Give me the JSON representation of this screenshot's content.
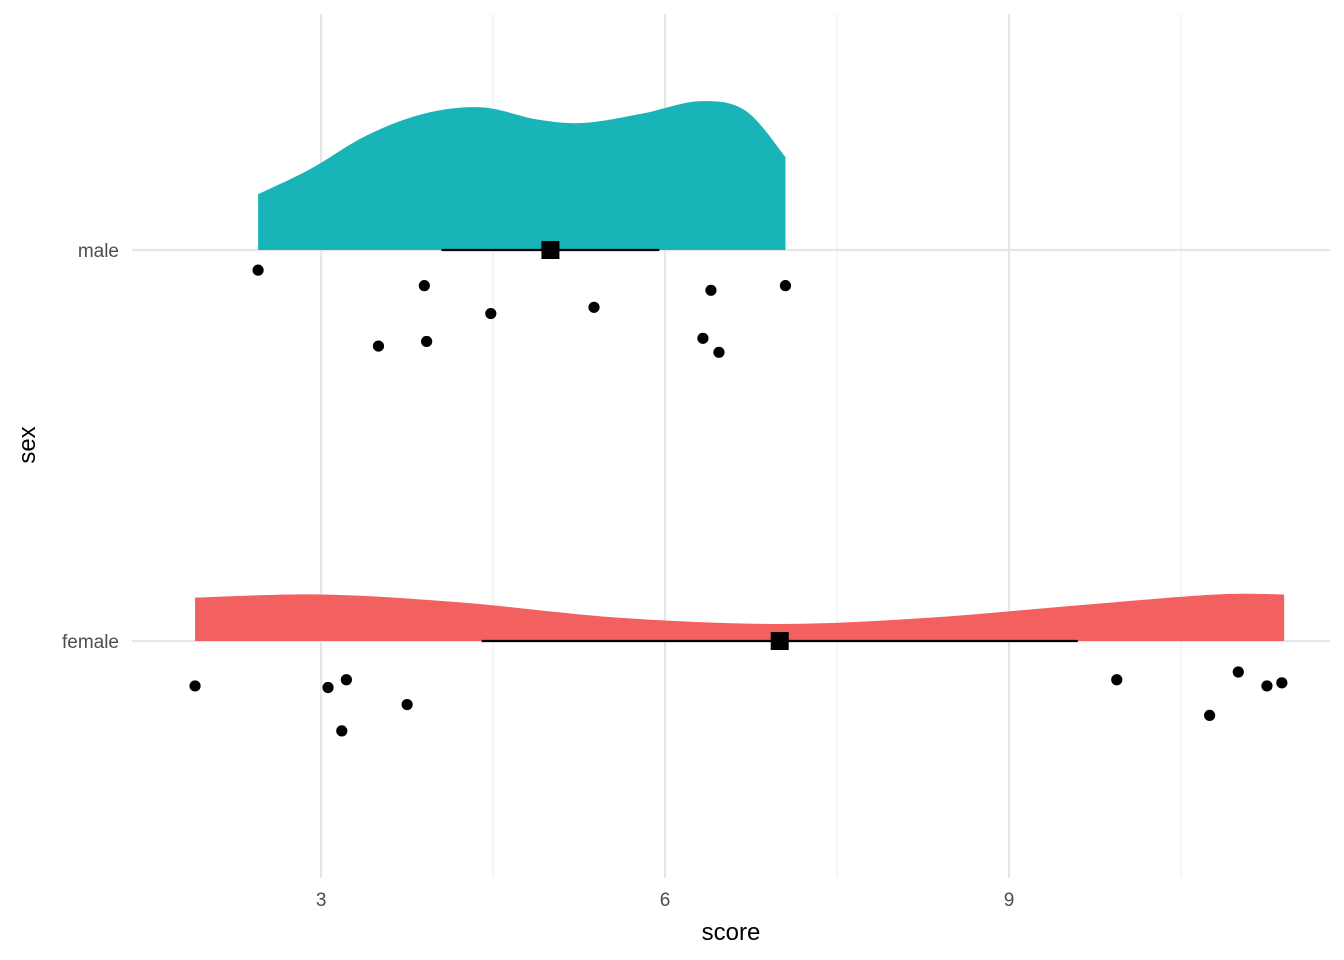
{
  "chart_data": {
    "type": "raincloud",
    "title": "",
    "xlabel": "score",
    "ylabel": "sex",
    "xlim": [
      1.35,
      11.8
    ],
    "x_ticks": [
      3,
      6,
      9
    ],
    "x_tick_labels": [
      "3",
      "6",
      "9"
    ],
    "x_minor_ticks": [
      4.5,
      7.5,
      10.5
    ],
    "grid": true,
    "legend": "none",
    "categories": [
      "male",
      "female"
    ],
    "series": [
      {
        "name": "male",
        "color": "#19B4B8",
        "density_x": [
          2.45,
          2.9,
          3.4,
          3.9,
          4.4,
          4.9,
          5.3,
          5.8,
          6.3,
          6.7,
          7.05
        ],
        "density_y": [
          0.36,
          0.52,
          0.74,
          0.88,
          0.92,
          0.84,
          0.82,
          0.88,
          0.96,
          0.9,
          0.6
        ],
        "mean": 5.0,
        "interval": [
          4.05,
          5.95
        ],
        "points": [
          {
            "x": 2.45,
            "y": -0.13
          },
          {
            "x": 3.9,
            "y": -0.23
          },
          {
            "x": 4.48,
            "y": -0.41
          },
          {
            "x": 5.38,
            "y": -0.37
          },
          {
            "x": 6.4,
            "y": -0.26
          },
          {
            "x": 7.05,
            "y": -0.23
          },
          {
            "x": 3.5,
            "y": -0.62
          },
          {
            "x": 3.92,
            "y": -0.59
          },
          {
            "x": 6.33,
            "y": -0.57
          },
          {
            "x": 6.47,
            "y": -0.66
          }
        ]
      },
      {
        "name": "female",
        "color": "#F26060",
        "density_x": [
          1.9,
          3.0,
          4.2,
          5.6,
          7.0,
          8.3,
          9.6,
          10.8,
          11.4
        ],
        "density_y": [
          0.28,
          0.3,
          0.25,
          0.15,
          0.11,
          0.15,
          0.23,
          0.3,
          0.3
        ],
        "mean": 7.0,
        "interval": [
          4.4,
          9.6
        ],
        "points": [
          {
            "x": 1.9,
            "y": -0.29
          },
          {
            "x": 3.06,
            "y": -0.3
          },
          {
            "x": 3.22,
            "y": -0.25
          },
          {
            "x": 3.75,
            "y": -0.41
          },
          {
            "x": 3.18,
            "y": -0.58
          },
          {
            "x": 9.94,
            "y": -0.25
          },
          {
            "x": 11.0,
            "y": -0.2
          },
          {
            "x": 11.25,
            "y": -0.29
          },
          {
            "x": 11.38,
            "y": -0.27
          },
          {
            "x": 10.75,
            "y": -0.48
          }
        ]
      }
    ]
  }
}
